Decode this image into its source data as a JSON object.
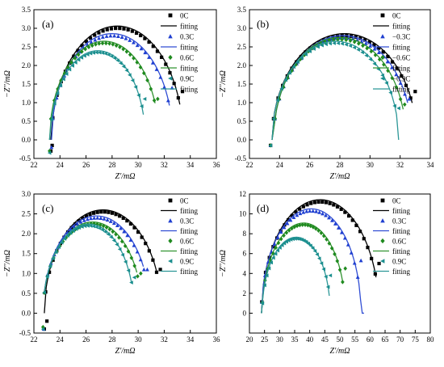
{
  "chart_data": [
    {
      "type": "scatter",
      "panel_label": "(a)",
      "xlabel_text": "Z'/mΩ",
      "ylabel_text": "−Z''/mΩ",
      "xlim": [
        22,
        36
      ],
      "ylim": [
        -0.5,
        3.5
      ],
      "xticks": [
        "22",
        "24",
        "26",
        "28",
        "30",
        "32",
        "34",
        "36"
      ],
      "yticks": [
        "-0.5",
        "0.0",
        "0.5",
        "1.0",
        "1.5",
        "2.0",
        "2.5",
        "3.0",
        "3.5"
      ],
      "legend": [
        "0C",
        "fitting",
        "0.3C",
        "fitting",
        "0.6C",
        "fitting",
        "0.9C",
        "fitting"
      ],
      "series": [
        {
          "name": "0C",
          "color": "#000000",
          "marker": "square",
          "measured": {
            "center": 28.4,
            "radius": 5.05,
            "peak": 3.0,
            "x_end": 33.4,
            "y_end": 1.3
          },
          "fit": {
            "x_start": 23.3,
            "x_end": 33.2
          },
          "tail": [
            [
              23.4,
              -0.15
            ],
            [
              23.3,
              -0.3
            ]
          ]
        },
        {
          "name": "0.3C",
          "color": "#1f3fd0",
          "marker": "triangle-up",
          "measured": {
            "center": 28.0,
            "radius": 4.65,
            "peak": 2.8,
            "x_end": 32.6,
            "y_end": 1.4
          },
          "fit": {
            "x_start": 23.35,
            "x_end": 32.4
          },
          "tail": [
            [
              23.35,
              -0.2
            ]
          ]
        },
        {
          "name": "0.6C",
          "color": "#1f8a1f",
          "marker": "diamond",
          "measured": {
            "center": 27.4,
            "radius": 4.2,
            "peak": 2.6,
            "x_end": 31.5,
            "y_end": 1.1
          },
          "fit": {
            "x_start": 23.2,
            "x_end": 31.3
          },
          "tail": [
            [
              23.2,
              -0.3
            ]
          ]
        },
        {
          "name": "0.9C",
          "color": "#1a8e8e",
          "marker": "triangle-left",
          "measured": {
            "center": 26.9,
            "radius": 3.65,
            "peak": 2.35,
            "x_end": 30.5,
            "y_end": 1.1
          },
          "fit": {
            "x_start": 23.2,
            "x_end": 30.4
          },
          "tail": [
            [
              23.2,
              -0.35
            ]
          ]
        }
      ]
    },
    {
      "type": "scatter",
      "panel_label": "(b)",
      "xlabel_text": "Z'/mΩ",
      "ylabel_text": "−Z''/mΩ",
      "xlim": [
        22,
        34
      ],
      "ylim": [
        -0.5,
        3.5
      ],
      "xticks": [
        "22",
        "24",
        "26",
        "28",
        "30",
        "32",
        "34"
      ],
      "yticks": [
        "-0.5",
        "0.0",
        "0.5",
        "1.0",
        "1.5",
        "2.0",
        "2.5",
        "3.0",
        "3.5"
      ],
      "legend": [
        "0C",
        "fitting",
        "−0.3C",
        "fitting",
        "−0.6C",
        "fitting",
        "−0.9C",
        "fitting"
      ],
      "series": [
        {
          "name": "0C",
          "color": "#000000",
          "marker": "square",
          "measured": {
            "center": 28.3,
            "radius": 4.8,
            "peak": 2.8,
            "x_end": 33.0,
            "y_end": 1.3
          },
          "fit": {
            "x_start": 23.5,
            "x_end": 32.8
          },
          "tail": [
            [
              23.4,
              -0.15
            ]
          ]
        },
        {
          "name": "−0.3C",
          "color": "#1f3fd0",
          "marker": "triangle-up",
          "measured": {
            "center": 28.2,
            "radius": 4.6,
            "peak": 2.75,
            "x_end": 32.6,
            "y_end": 1.1
          },
          "fit": {
            "x_start": 23.5,
            "x_end": 32.5
          },
          "tail": [
            [
              23.4,
              -0.15
            ]
          ]
        },
        {
          "name": "−0.6C",
          "color": "#1f8a1f",
          "marker": "diamond",
          "measured": {
            "center": 28.0,
            "radius": 4.4,
            "peak": 2.7,
            "x_end": 32.3,
            "y_end": 0.95
          },
          "fit": {
            "x_start": 23.5,
            "x_end": 32.2
          },
          "tail": [
            [
              23.4,
              -0.15
            ]
          ]
        },
        {
          "name": "−0.9C",
          "color": "#1a8e8e",
          "marker": "triangle-left",
          "measured": {
            "center": 27.7,
            "radius": 4.2,
            "peak": 2.6,
            "x_end": 31.9,
            "y_end": 0.85
          },
          "fit": {
            "x_start": 23.5,
            "x_end": 31.9
          },
          "tail": [
            [
              23.4,
              -0.15
            ]
          ]
        }
      ]
    },
    {
      "type": "scatter",
      "panel_label": "(c)",
      "xlabel_text": "Z'/mΩ",
      "ylabel_text": "−Z''/mΩ",
      "xlim": [
        22,
        36
      ],
      "ylim": [
        -0.5,
        3.0
      ],
      "xticks": [
        "22",
        "24",
        "26",
        "28",
        "30",
        "32",
        "34",
        "36"
      ],
      "yticks": [
        "-0.5",
        "0.0",
        "0.5",
        "1.0",
        "1.5",
        "2.0",
        "2.5",
        "3.0"
      ],
      "legend": [
        "0C",
        "fitting",
        "0.3C",
        "fitting",
        "0.6C",
        "fitting",
        "0.9C",
        "fitting"
      ],
      "series": [
        {
          "name": "0C",
          "color": "#000000",
          "marker": "square",
          "measured": {
            "center": 27.3,
            "radius": 4.5,
            "peak": 2.55,
            "x_end": 31.7,
            "y_end": 1.1
          },
          "fit": {
            "x_start": 22.8,
            "x_end": 31.4
          },
          "tail": [
            [
              23.0,
              -0.2
            ],
            [
              22.8,
              -0.4
            ]
          ]
        },
        {
          "name": "0.3C",
          "color": "#1f3fd0",
          "marker": "triangle-up",
          "measured": {
            "center": 26.8,
            "radius": 4.1,
            "peak": 2.4,
            "x_end": 30.7,
            "y_end": 1.1
          },
          "fit": {
            "x_start": 22.8,
            "x_end": 30.4
          },
          "tail": [
            [
              22.75,
              -0.4
            ]
          ]
        },
        {
          "name": "0.6C",
          "color": "#1f8a1f",
          "marker": "diamond",
          "measured": {
            "center": 26.5,
            "radius": 3.8,
            "peak": 2.25,
            "x_end": 30.2,
            "y_end": 1.0
          },
          "fit": {
            "x_start": 22.8,
            "x_end": 29.9
          },
          "tail": [
            [
              22.7,
              -0.35
            ]
          ]
        },
        {
          "name": "0.9C",
          "color": "#1a8e8e",
          "marker": "triangle-left",
          "measured": {
            "center": 26.2,
            "radius": 3.5,
            "peak": 2.2,
            "x_end": 29.7,
            "y_end": 0.9
          },
          "fit": {
            "x_start": 22.8,
            "x_end": 29.5
          },
          "tail": [
            [
              22.7,
              -0.4
            ]
          ]
        }
      ]
    },
    {
      "type": "scatter",
      "panel_label": "(d)",
      "xlabel_text": "Z'/mΩ",
      "ylabel_text": "−Z''/mΩ",
      "xlim": [
        20,
        80
      ],
      "ylim": [
        -2,
        12
      ],
      "xticks": [
        "20",
        "25",
        "30",
        "35",
        "40",
        "45",
        "50",
        "55",
        "60",
        "65",
        "70",
        "75",
        "80"
      ],
      "yticks": [
        "0",
        "2",
        "4",
        "6",
        "8",
        "10",
        "12"
      ],
      "legend": [
        "0C",
        "fitting",
        "0.3C",
        "fitting",
        "0.6C",
        "fitting",
        "0.9C",
        "fitting"
      ],
      "series": [
        {
          "name": "0C",
          "color": "#000000",
          "marker": "square",
          "measured": {
            "center": 43.5,
            "radius": 19.5,
            "peak": 11.2,
            "x_end": 63.0,
            "y_end": 5.0
          },
          "fit": {
            "x_start": 24.0,
            "x_end": 62.0
          },
          "tail": []
        },
        {
          "name": "0.3C",
          "color": "#1f3fd0",
          "marker": "triangle-up",
          "measured": {
            "center": 40.5,
            "radius": 16.5,
            "peak": 10.3,
            "x_end": 57.0,
            "y_end": 5.3
          },
          "fit": {
            "x_start": 24.0,
            "x_end": 58.0
          },
          "tail": []
        },
        {
          "name": "0.6C",
          "color": "#1f8a1f",
          "marker": "diamond",
          "measured": {
            "center": 38.0,
            "radius": 13.8,
            "peak": 8.9,
            "x_end": 51.8,
            "y_end": 4.5
          },
          "fit": {
            "x_start": 24.0,
            "x_end": 51.0
          },
          "tail": []
        },
        {
          "name": "0.9C",
          "color": "#1a8e8e",
          "marker": "triangle-left",
          "measured": {
            "center": 35.5,
            "radius": 11.3,
            "peak": 7.5,
            "x_end": 46.8,
            "y_end": 3.8
          },
          "fit": {
            "x_start": 24.0,
            "x_end": 46.5
          },
          "tail": []
        }
      ]
    }
  ]
}
